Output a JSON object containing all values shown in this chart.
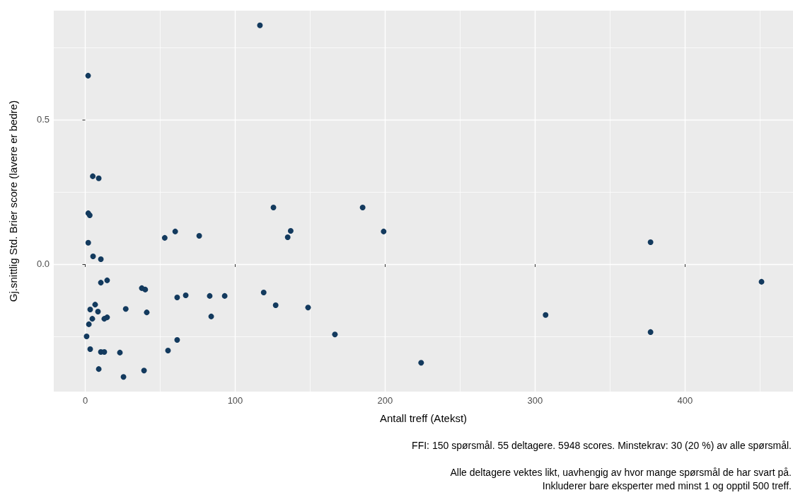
{
  "chart_data": {
    "type": "scatter",
    "xlabel": "Antall treff (Atekst)",
    "ylabel": "Gj.snittlig Std. Brier score (lavere er bedre)",
    "annotations": [
      "FFI: 150 spørsmål. 55 deltagere. 5948 scores. Minstekrav: 30 (20 %) av alle spørsmål.",
      "Alle deltagere vektes likt, uavhengig av hvor mange spørsmål de har svart på.",
      "Inkluderer bare eksperter med minst 1 og opptil 500 treff."
    ],
    "series": [
      {
        "color": "#133a5e",
        "x": [
          1.9,
          116.5,
          5,
          9,
          2,
          3,
          2,
          60,
          53,
          76,
          125.5,
          137,
          135,
          185,
          199,
          377,
          451,
          5.2,
          10.4,
          10.4,
          14.6,
          37.7,
          40,
          61.3,
          67,
          83,
          93,
          119,
          127,
          148.6,
          84,
          27,
          41,
          6.6,
          3.3,
          8.5,
          4.7,
          12.7,
          14.6,
          2.4,
          0.9,
          3.3,
          10.4,
          12.7,
          23.1,
          9,
          39.2,
          25.5,
          61.3,
          55.2,
          166.5,
          224,
          307,
          377
        ],
        "values": [
          0.652,
          0.826,
          0.304,
          0.297,
          0.176,
          0.169,
          0.074,
          0.113,
          0.091,
          0.098,
          0.196,
          0.115,
          0.093,
          0.196,
          0.113,
          0.076,
          -0.061,
          0.027,
          0.017,
          -0.064,
          -0.056,
          -0.083,
          -0.088,
          -0.115,
          -0.108,
          -0.11,
          -0.11,
          -0.098,
          -0.142,
          -0.15,
          -0.181,
          -0.155,
          -0.167,
          -0.14,
          -0.157,
          -0.164,
          -0.189,
          -0.189,
          -0.184,
          -0.208,
          -0.25,
          -0.294,
          -0.304,
          -0.304,
          -0.306,
          -0.363,
          -0.368,
          -0.39,
          -0.262,
          -0.299,
          -0.243,
          -0.341,
          -0.176,
          -0.235
        ]
      }
    ],
    "xlim": [
      -21,
      472
    ],
    "xticks": [
      0,
      {
        "value": 50,
        "label": null
      },
      100,
      {
        "value": 150,
        "label": null
      },
      200,
      {
        "value": 250,
        "label": null
      },
      300,
      {
        "value": 350,
        "label": null
      },
      400,
      {
        "value": 450,
        "label": null
      }
    ],
    "ylim": [
      -0.441,
      0.877
    ],
    "yticks": [
      {
        "value": -0.25,
        "label": null
      },
      {
        "value": 0,
        "label": "0.0"
      },
      {
        "value": 0.25,
        "label": null
      },
      0.5,
      {
        "value": 0.75,
        "label": null
      }
    ],
    "grid": true,
    "marker": "circle"
  }
}
